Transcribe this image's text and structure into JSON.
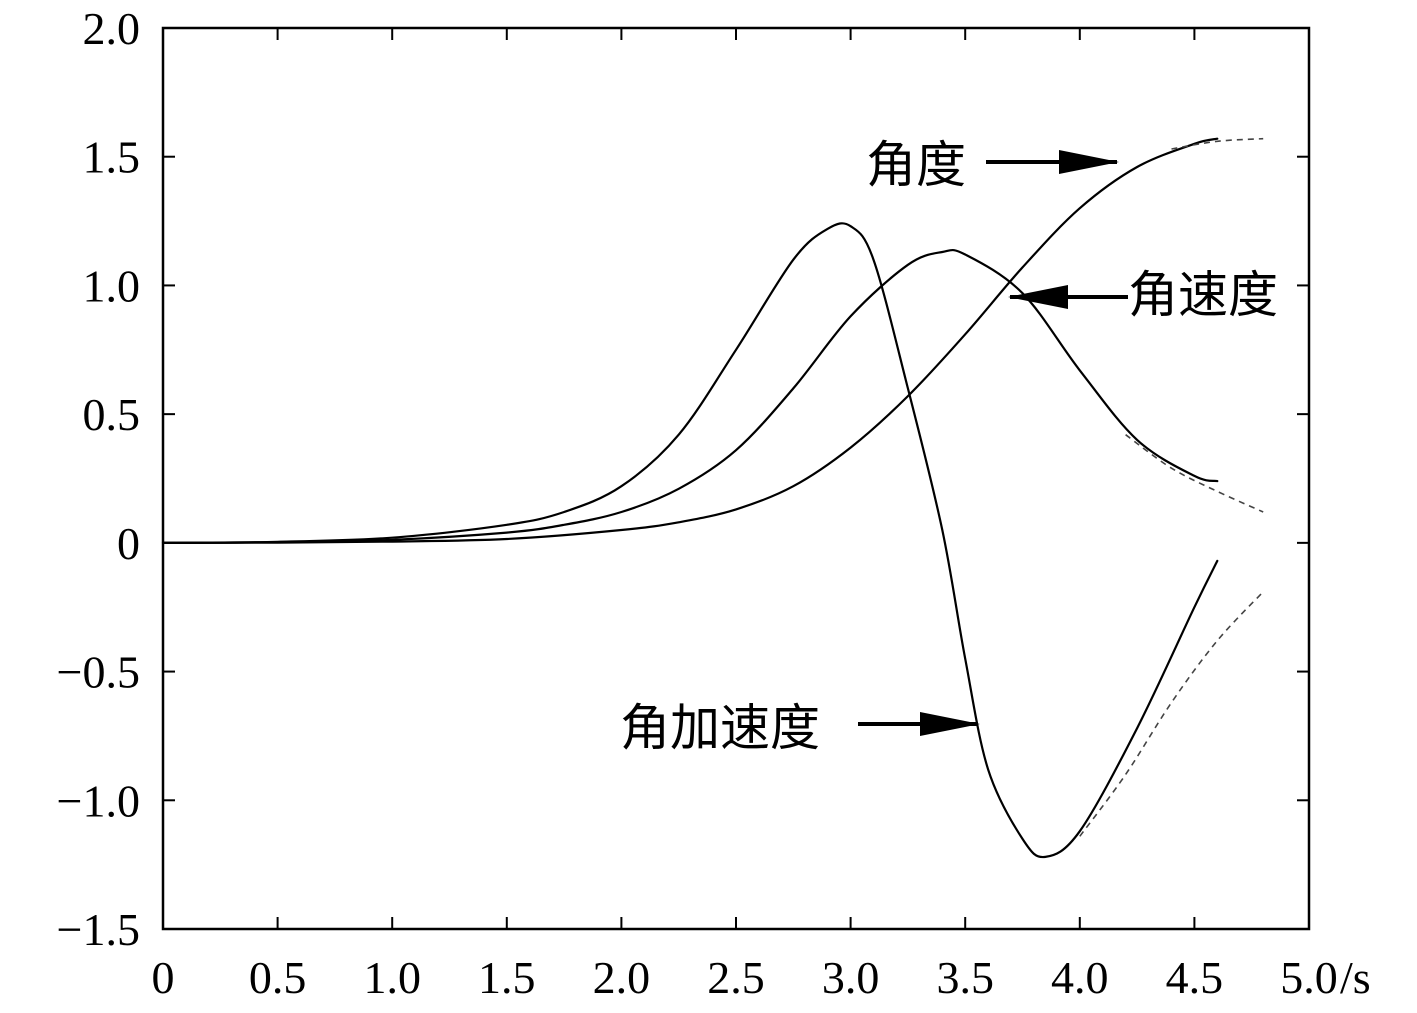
{
  "chart_data": {
    "type": "line",
    "title": "",
    "xlabel": "/s",
    "ylabel": "",
    "xlim": [
      0,
      5.0
    ],
    "ylim": [
      -1.5,
      2.0
    ],
    "grid": false,
    "x_ticks": [
      0,
      0.5,
      1.0,
      1.5,
      2.0,
      2.5,
      3.0,
      3.5,
      4.0,
      4.5,
      5.0
    ],
    "x_tick_labels": [
      "0",
      "0.5",
      "1.0",
      "1.5",
      "2.0",
      "2.5",
      "3.0",
      "3.5",
      "4.0",
      "4.5",
      "5.0"
    ],
    "y_ticks": [
      -1.5,
      -1.0,
      -0.5,
      0,
      0.5,
      1.0,
      1.5,
      2.0
    ],
    "y_tick_labels": [
      "−1.5",
      "−1.0",
      "−0.5",
      "0",
      "0.5",
      "1.0",
      "1.5",
      "2.0"
    ],
    "series": [
      {
        "name": "角度",
        "x": [
          0,
          0.5,
          1.0,
          1.5,
          2.0,
          2.25,
          2.5,
          2.75,
          3.0,
          3.25,
          3.5,
          3.75,
          4.0,
          4.25,
          4.5,
          4.6
        ],
        "values": [
          0,
          0.001,
          0.005,
          0.015,
          0.05,
          0.08,
          0.13,
          0.22,
          0.37,
          0.57,
          0.81,
          1.07,
          1.3,
          1.46,
          1.55,
          1.57
        ],
        "dashed_x": [
          4.4,
          4.6,
          4.8
        ],
        "dashed_values": [
          1.53,
          1.56,
          1.57
        ]
      },
      {
        "name": "角速度",
        "x": [
          0,
          0.5,
          1.0,
          1.5,
          1.75,
          2.0,
          2.25,
          2.5,
          2.75,
          3.0,
          3.25,
          3.4,
          3.5,
          3.75,
          4.0,
          4.25,
          4.5,
          4.6
        ],
        "values": [
          0,
          0.003,
          0.012,
          0.04,
          0.07,
          0.12,
          0.21,
          0.36,
          0.6,
          0.88,
          1.08,
          1.13,
          1.12,
          0.97,
          0.67,
          0.4,
          0.26,
          0.24
        ],
        "dashed_x": [
          4.2,
          4.4,
          4.6,
          4.8
        ],
        "dashed_values": [
          0.42,
          0.29,
          0.2,
          0.12
        ]
      },
      {
        "name": "角加速度",
        "x": [
          0,
          0.5,
          1.0,
          1.5,
          1.75,
          2.0,
          2.25,
          2.5,
          2.75,
          2.9,
          3.0,
          3.1,
          3.25,
          3.4,
          3.5,
          3.6,
          3.75,
          3.85,
          4.0,
          4.25,
          4.5,
          4.6
        ],
        "values": [
          0,
          0.004,
          0.02,
          0.07,
          0.12,
          0.22,
          0.42,
          0.75,
          1.1,
          1.22,
          1.23,
          1.1,
          0.6,
          0.05,
          -0.45,
          -0.88,
          -1.15,
          -1.22,
          -1.12,
          -0.72,
          -0.25,
          -0.07
        ],
        "dashed_x": [
          4.0,
          4.2,
          4.4,
          4.6,
          4.8
        ],
        "dashed_values": [
          -1.14,
          -0.9,
          -0.62,
          -0.38,
          -0.19
        ]
      }
    ],
    "annotations": [
      {
        "text": "角度",
        "target_series": "角度"
      },
      {
        "text": "角速度",
        "target_series": "角速度"
      },
      {
        "text": "角加速度",
        "target_series": "角加速度"
      }
    ]
  }
}
